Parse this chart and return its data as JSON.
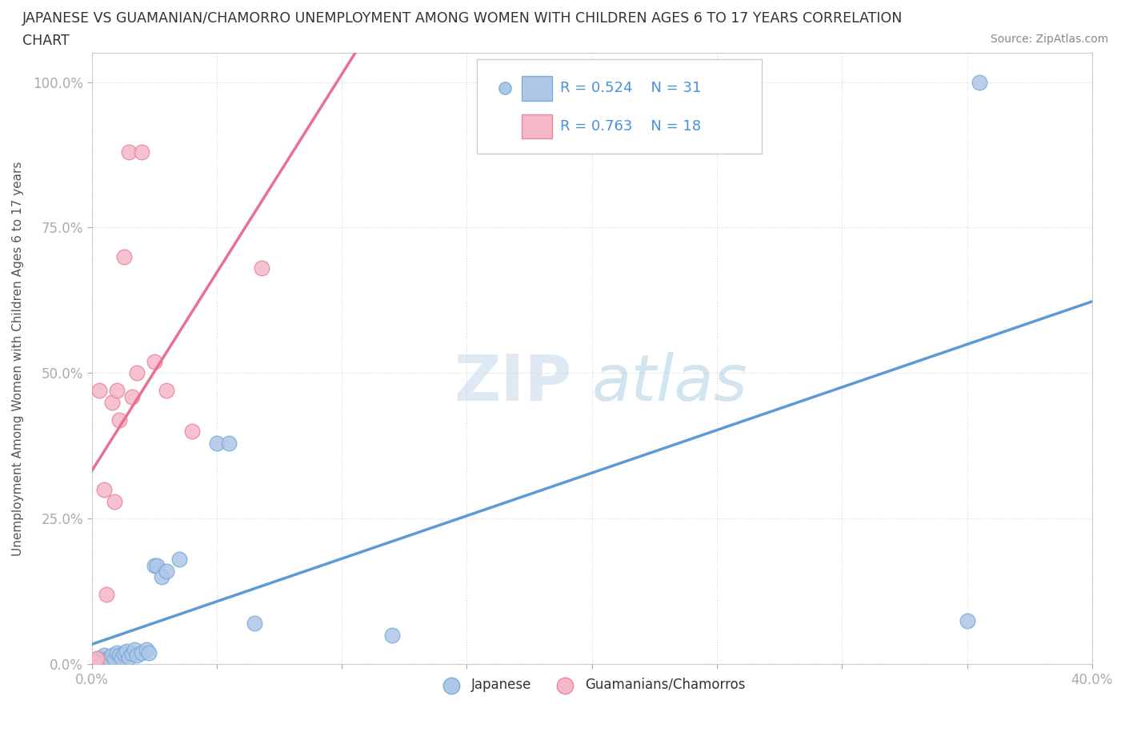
{
  "title_line1": "JAPANESE VS GUAMANIAN/CHAMORRO UNEMPLOYMENT AMONG WOMEN WITH CHILDREN AGES 6 TO 17 YEARS CORRELATION",
  "title_line2": "CHART",
  "source": "Source: ZipAtlas.com",
  "ylabel": "Unemployment Among Women with Children Ages 6 to 17 years",
  "xmin": 0.0,
  "xmax": 0.4,
  "ymin": 0.0,
  "ymax": 1.05,
  "xticks": [
    0.0,
    0.05,
    0.1,
    0.15,
    0.2,
    0.25,
    0.3,
    0.35,
    0.4
  ],
  "xtick_labels": [
    "0.0%",
    "",
    "",
    "",
    "",
    "",
    "",
    "",
    "40.0%"
  ],
  "yticks": [
    0.0,
    0.25,
    0.5,
    0.75,
    1.0
  ],
  "ytick_labels": [
    "0.0%",
    "25.0%",
    "50.0%",
    "75.0%",
    "100.0%"
  ],
  "japanese_color": "#aec6e8",
  "japanese_edge": "#7aafd4",
  "guamanian_color": "#f5b8c8",
  "guamanian_edge": "#e888a0",
  "trend_japanese_color": "#5b9bd5",
  "trend_guamanian_color": "#e87090",
  "R_japanese": 0.524,
  "N_japanese": 31,
  "R_guamanian": 0.763,
  "N_guamanian": 18,
  "japanese_x": [
    0.002,
    0.003,
    0.004,
    0.005,
    0.006,
    0.007,
    0.008,
    0.009,
    0.01,
    0.011,
    0.012,
    0.013,
    0.014,
    0.015,
    0.016,
    0.017,
    0.018,
    0.02,
    0.022,
    0.023,
    0.025,
    0.026,
    0.028,
    0.03,
    0.035,
    0.05,
    0.055,
    0.065,
    0.12,
    0.35,
    0.355
  ],
  "japanese_y": [
    0.005,
    0.01,
    0.005,
    0.015,
    0.008,
    0.01,
    0.015,
    0.008,
    0.02,
    0.015,
    0.01,
    0.018,
    0.022,
    0.012,
    0.018,
    0.025,
    0.015,
    0.02,
    0.025,
    0.02,
    0.17,
    0.17,
    0.15,
    0.16,
    0.18,
    0.38,
    0.38,
    0.07,
    0.05,
    0.075,
    1.0
  ],
  "guamanian_x": [
    0.001,
    0.002,
    0.003,
    0.005,
    0.006,
    0.008,
    0.009,
    0.01,
    0.011,
    0.013,
    0.015,
    0.016,
    0.018,
    0.02,
    0.025,
    0.03,
    0.04,
    0.068
  ],
  "guamanian_y": [
    0.005,
    0.01,
    0.47,
    0.3,
    0.12,
    0.45,
    0.28,
    0.47,
    0.42,
    0.7,
    0.88,
    0.46,
    0.5,
    0.88,
    0.52,
    0.47,
    0.4,
    0.68
  ],
  "watermark_zip": "ZIP",
  "watermark_atlas": "atlas",
  "background_color": "#ffffff",
  "grid_color": "#d8d8d8",
  "legend_text_color": "#4a90d9",
  "label_color": "#4a90d9",
  "title_color": "#333333",
  "axis_label_color": "#555555"
}
